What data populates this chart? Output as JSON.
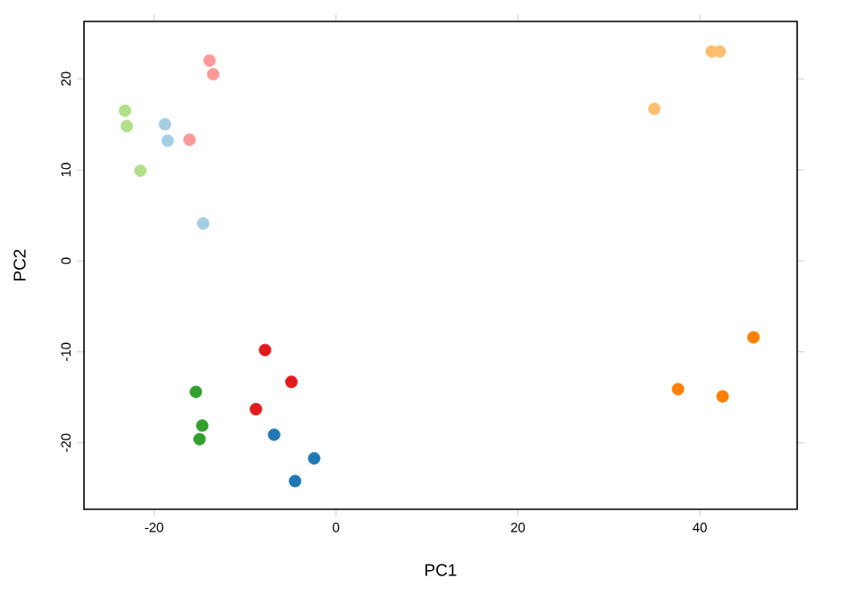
{
  "chart_data": {
    "type": "scatter",
    "xlabel": "PC1",
    "ylabel": "PC2",
    "xlim": [
      -27.7,
      50.7
    ],
    "ylim": [
      -27.3,
      26.3
    ],
    "xticks": [
      -20,
      0,
      20,
      40
    ],
    "yticks": [
      -20,
      -10,
      0,
      10,
      20
    ],
    "grid": false,
    "marker": "circle",
    "series": [
      {
        "color": "#a6cee3",
        "x": [
          -18.8,
          -18.5,
          -14.6
        ],
        "values": [
          15.0,
          13.2,
          4.1
        ]
      },
      {
        "color": "#1f78b4",
        "x": [
          -6.8,
          -2.4,
          -4.5
        ],
        "values": [
          -19.1,
          -21.7,
          -24.2
        ]
      },
      {
        "color": "#b2df8a",
        "x": [
          -23.2,
          -23.0,
          -21.5
        ],
        "values": [
          16.5,
          14.8,
          9.9
        ]
      },
      {
        "color": "#33a02c",
        "x": [
          -15.4,
          -14.7,
          -15.0
        ],
        "values": [
          -14.4,
          -18.1,
          -19.6
        ]
      },
      {
        "color": "#fb9a99",
        "x": [
          -13.9,
          -13.5,
          -16.1
        ],
        "values": [
          22.0,
          20.5,
          13.3
        ]
      },
      {
        "color": "#e31a1c",
        "x": [
          -7.8,
          -4.9,
          -8.8
        ],
        "values": [
          -9.8,
          -13.3,
          -16.3
        ]
      },
      {
        "color": "#fdbf6f",
        "x": [
          41.3,
          42.2,
          35.0
        ],
        "values": [
          23.0,
          23.0,
          16.7
        ]
      },
      {
        "color": "#ff7f00",
        "x": [
          45.9,
          37.6,
          42.5
        ],
        "values": [
          -8.4,
          -14.1,
          -14.9
        ]
      }
    ]
  }
}
